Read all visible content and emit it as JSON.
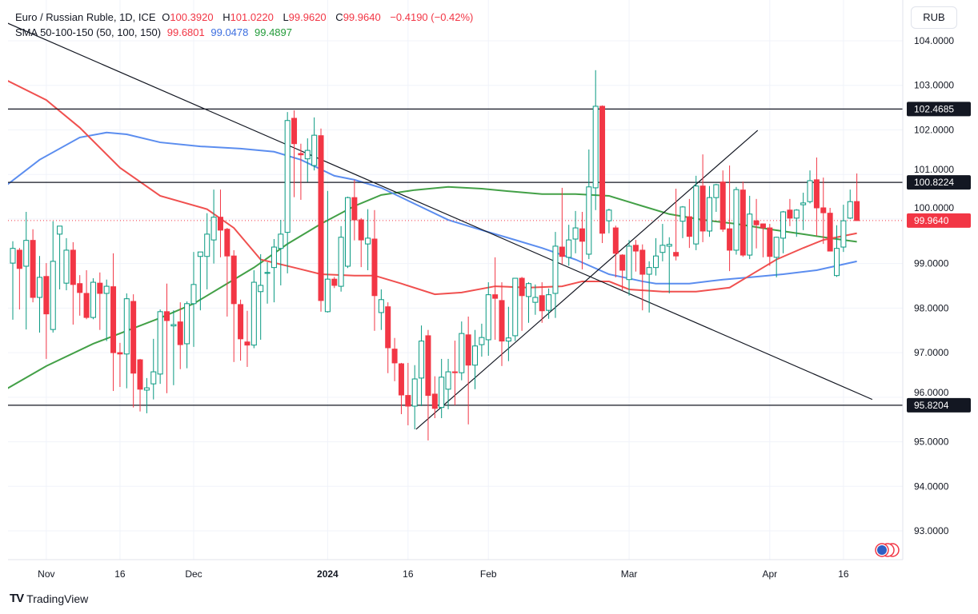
{
  "header": {
    "symbol": "Euro / Russian Ruble, 1D, ICE",
    "o_label": "O",
    "o": "100.3920",
    "h_label": "H",
    "h": "101.0220",
    "l_label": "L",
    "l": "99.9620",
    "c_label": "C",
    "c": "99.9640",
    "change": "−0.4190 (−0.42%)",
    "sma_label": "SMA 50-100-150 (50, 100, 150)",
    "sma50": "99.6801",
    "sma100": "99.0478",
    "sma150": "99.4897"
  },
  "currency": "RUB",
  "brand": "TradingView",
  "colors": {
    "up": "#089981",
    "down": "#F23645",
    "sma50": "#F0504F",
    "sma100": "#5b8def",
    "sma150": "#43a047",
    "hline": "#131722"
  },
  "chart_data": {
    "type": "candlestick",
    "ylim": [
      92.4,
      104.9
    ],
    "y_ticks": [
      "93.0000",
      "94.0000",
      "95.0000",
      "96.0000",
      "97.0000",
      "98.0000",
      "99.0000",
      "100.0000",
      "101.0000",
      "102.0000",
      "103.0000",
      "104.0000"
    ],
    "x_ticks": [
      {
        "label": "Nov",
        "bar": 5
      },
      {
        "label": "16",
        "bar": 16
      },
      {
        "label": "Dec",
        "bar": 27
      },
      {
        "label": "2024",
        "bar": 47,
        "bold": true
      },
      {
        "label": "16",
        "bar": 59
      },
      {
        "label": "Feb",
        "bar": 71
      },
      {
        "label": "Mar",
        "bar": 92
      },
      {
        "label": "Apr",
        "bar": 113
      },
      {
        "label": "16",
        "bar": 124
      }
    ],
    "candles": [
      [
        99.01,
        99.5,
        97.74,
        99.34
      ],
      [
        99.3,
        99.35,
        97.97,
        98.89
      ],
      [
        98.94,
        100.16,
        97.52,
        99.52
      ],
      [
        99.52,
        99.77,
        98.13,
        98.24
      ],
      [
        98.24,
        99.17,
        97.45,
        98.69
      ],
      [
        98.71,
        99.01,
        96.86,
        97.87
      ],
      [
        97.52,
        99.95,
        97.45,
        99.05
      ],
      [
        99.66,
        99.84,
        98.42,
        99.84
      ],
      [
        98.56,
        99.57,
        98.4,
        99.3
      ],
      [
        99.3,
        99.48,
        97.63,
        98.53
      ],
      [
        98.55,
        98.74,
        97.83,
        98.35
      ],
      [
        98.33,
        98.85,
        97.75,
        97.79
      ],
      [
        97.79,
        98.67,
        97.75,
        98.58
      ],
      [
        98.56,
        98.8,
        97.51,
        98.33
      ],
      [
        98.33,
        98.64,
        97.26,
        98.49
      ],
      [
        98.48,
        99.23,
        96.14,
        97.0
      ],
      [
        97.0,
        97.22,
        96.23,
        96.97
      ],
      [
        96.97,
        98.33,
        96.2,
        98.21
      ],
      [
        98.15,
        98.31,
        95.77,
        96.54
      ],
      [
        96.84,
        96.86,
        95.68,
        96.18
      ],
      [
        96.16,
        96.43,
        95.64,
        96.21
      ],
      [
        96.3,
        97.31,
        95.95,
        96.57
      ],
      [
        96.52,
        97.97,
        96.3,
        97.92
      ],
      [
        97.92,
        98.55,
        96.09,
        97.72
      ],
      [
        97.6,
        97.95,
        96.27,
        97.63
      ],
      [
        97.69,
        98.13,
        96.63,
        97.18
      ],
      [
        97.2,
        98.15,
        96.65,
        98.1
      ],
      [
        98.1,
        99.26,
        97.13,
        98.53
      ],
      [
        99.16,
        99.26,
        97.95,
        99.26
      ],
      [
        99.16,
        100.13,
        98.42,
        99.66
      ],
      [
        99.53,
        100.66,
        99.0,
        100.04
      ],
      [
        100.04,
        100.66,
        99.14,
        99.75
      ],
      [
        99.77,
        99.8,
        97.81,
        99.17
      ],
      [
        99.17,
        99.3,
        96.79,
        98.1
      ],
      [
        98.08,
        98.19,
        96.82,
        97.31
      ],
      [
        97.24,
        97.94,
        96.68,
        97.17
      ],
      [
        97.17,
        98.85,
        97.1,
        98.58
      ],
      [
        98.37,
        99.21,
        97.29,
        98.51
      ],
      [
        98.78,
        99.03,
        98.1,
        98.8
      ],
      [
        98.91,
        99.55,
        98.13,
        99.37
      ],
      [
        99.34,
        99.98,
        98.51,
        99.66
      ],
      [
        99.7,
        102.4,
        98.78,
        102.21
      ],
      [
        102.26,
        102.44,
        100.49,
        101.69
      ],
      [
        101.47,
        101.69,
        100.43,
        101.44
      ],
      [
        101.35,
        101.81,
        100.83,
        101.54
      ],
      [
        101.2,
        102.28,
        101.09,
        101.88
      ],
      [
        101.87,
        102.03,
        97.92,
        98.17
      ],
      [
        97.92,
        100.63,
        97.9,
        98.65
      ],
      [
        98.65,
        98.7,
        98.45,
        98.51
      ],
      [
        98.49,
        99.84,
        98.37,
        99.59
      ],
      [
        98.94,
        100.5,
        98.9,
        100.48
      ],
      [
        100.48,
        100.88,
        99.52,
        99.98
      ],
      [
        99.98,
        100.02,
        98.92,
        99.53
      ],
      [
        99.44,
        100.22,
        98.85,
        99.57
      ],
      [
        99.55,
        100.2,
        97.49,
        98.28
      ],
      [
        97.9,
        98.42,
        97.51,
        98.19
      ],
      [
        98.03,
        98.13,
        96.54,
        97.11
      ],
      [
        97.08,
        97.33,
        96.36,
        96.77
      ],
      [
        96.75,
        96.77,
        95.62,
        96.05
      ],
      [
        96.04,
        96.77,
        95.37,
        95.8
      ],
      [
        95.8,
        96.72,
        95.28,
        96.41
      ],
      [
        96.43,
        97.61,
        95.8,
        97.26
      ],
      [
        97.38,
        97.51,
        95.03,
        96.04
      ],
      [
        96.07,
        96.47,
        95.53,
        95.75
      ],
      [
        95.77,
        96.86,
        95.53,
        96.45
      ],
      [
        96.18,
        96.86,
        95.73,
        96.57
      ],
      [
        96.57,
        97.27,
        95.82,
        96.55
      ],
      [
        96.55,
        97.7,
        96.38,
        97.43
      ],
      [
        97.4,
        97.81,
        95.39,
        96.72
      ],
      [
        96.72,
        97.51,
        96.18,
        97.15
      ],
      [
        97.18,
        97.65,
        96.91,
        97.34
      ],
      [
        97.29,
        98.58,
        96.93,
        98.3
      ],
      [
        98.3,
        99.14,
        97.29,
        98.22
      ],
      [
        98.17,
        98.58,
        96.7,
        97.26
      ],
      [
        97.26,
        98.03,
        96.81,
        97.33
      ],
      [
        97.38,
        98.67,
        97.26,
        98.67
      ],
      [
        98.67,
        98.7,
        97.49,
        98.28
      ],
      [
        98.26,
        98.58,
        97.67,
        98.55
      ],
      [
        98.13,
        98.53,
        97.85,
        98.24
      ],
      [
        98.28,
        98.58,
        97.67,
        97.94
      ],
      [
        97.95,
        98.44,
        97.76,
        98.3
      ],
      [
        98.33,
        99.71,
        97.78,
        99.39
      ],
      [
        99.37,
        100.7,
        98.98,
        99.16
      ],
      [
        99.14,
        99.87,
        98.95,
        99.53
      ],
      [
        99.55,
        100.18,
        99.23,
        99.8
      ],
      [
        99.78,
        100.16,
        98.87,
        99.5
      ],
      [
        99.21,
        101.56,
        99.1,
        100.72
      ],
      [
        100.7,
        103.34,
        100.2,
        102.53
      ],
      [
        102.53,
        102.55,
        99.46,
        99.68
      ],
      [
        99.96,
        100.23,
        99.68,
        100.2
      ],
      [
        99.8,
        99.85,
        98.69,
        99.23
      ],
      [
        99.19,
        99.21,
        98.39,
        98.85
      ],
      [
        98.64,
        99.53,
        98.28,
        99.39
      ],
      [
        99.41,
        99.53,
        98.82,
        99.28
      ],
      [
        99.3,
        99.43,
        97.95,
        98.76
      ],
      [
        98.76,
        99.05,
        97.9,
        98.91
      ],
      [
        98.91,
        99.57,
        98.73,
        99.17
      ],
      [
        99.25,
        99.89,
        99.05,
        99.41
      ],
      [
        99.39,
        99.59,
        98.33,
        99.43
      ],
      [
        99.25,
        100.68,
        99.07,
        99.17
      ],
      [
        99.95,
        100.29,
        99.57,
        100.27
      ],
      [
        100.05,
        100.45,
        99.35,
        99.61
      ],
      [
        99.44,
        100.97,
        99.3,
        100.74
      ],
      [
        100.74,
        101.45,
        99.48,
        99.73
      ],
      [
        99.73,
        100.74,
        99.6,
        100.48
      ],
      [
        100.48,
        100.79,
        100.16,
        100.77
      ],
      [
        100.83,
        101.09,
        99.71,
        99.77
      ],
      [
        99.78,
        101.2,
        98.83,
        99.3
      ],
      [
        99.3,
        100.72,
        99.2,
        100.66
      ],
      [
        100.65,
        100.84,
        99.15,
        99.19
      ],
      [
        99.19,
        100.52,
        99.1,
        100.11
      ],
      [
        99.96,
        100.45,
        99.34,
        99.87
      ],
      [
        99.89,
        99.9,
        99.14,
        99.8
      ],
      [
        99.8,
        99.89,
        98.95,
        99.16
      ],
      [
        99.14,
        99.6,
        98.69,
        99.59
      ],
      [
        99.57,
        100.18,
        99.23,
        100.16
      ],
      [
        100.2,
        100.45,
        99.84,
        100.02
      ],
      [
        100.02,
        100.22,
        99.6,
        100.2
      ],
      [
        100.32,
        100.59,
        99.75,
        100.36
      ],
      [
        100.39,
        101.09,
        100.35,
        100.86
      ],
      [
        100.88,
        101.38,
        99.62,
        100.25
      ],
      [
        100.25,
        100.93,
        99.44,
        100.14
      ],
      [
        100.13,
        100.25,
        99.28,
        99.28
      ],
      [
        98.73,
        99.86,
        98.7,
        99.34
      ],
      [
        99.37,
        100.32,
        99.26,
        99.96
      ],
      [
        100.02,
        100.66,
        100.0,
        100.39
      ],
      [
        100.392,
        101.022,
        99.962,
        99.964
      ]
    ],
    "sma50": [
      [
        -1,
        103.12
      ],
      [
        5,
        102.67
      ],
      [
        10,
        102.05
      ],
      [
        16,
        101.15
      ],
      [
        22,
        100.52
      ],
      [
        29,
        100.22
      ],
      [
        33,
        99.8
      ],
      [
        37,
        99.09
      ],
      [
        42,
        98.91
      ],
      [
        46,
        98.76
      ],
      [
        51,
        98.73
      ],
      [
        54,
        98.73
      ],
      [
        58,
        98.55
      ],
      [
        63,
        98.31
      ],
      [
        67,
        98.35
      ],
      [
        72,
        98.49
      ],
      [
        77,
        98.46
      ],
      [
        82,
        98.49
      ],
      [
        85,
        98.6
      ],
      [
        89,
        98.6
      ],
      [
        92,
        98.42
      ],
      [
        97,
        98.37
      ],
      [
        102,
        98.37
      ],
      [
        107,
        98.46
      ],
      [
        110,
        98.73
      ],
      [
        114,
        99.09
      ],
      [
        118,
        99.35
      ],
      [
        121,
        99.53
      ],
      [
        126,
        99.68
      ]
    ],
    "sma100": [
      [
        -1,
        100.75
      ],
      [
        4,
        101.33
      ],
      [
        10,
        101.83
      ],
      [
        14,
        101.94
      ],
      [
        17,
        101.9
      ],
      [
        22,
        101.72
      ],
      [
        28,
        101.63
      ],
      [
        34,
        101.58
      ],
      [
        39,
        101.51
      ],
      [
        43,
        101.33
      ],
      [
        48,
        100.97
      ],
      [
        51,
        100.88
      ],
      [
        55,
        100.7
      ],
      [
        60,
        100.34
      ],
      [
        65,
        99.98
      ],
      [
        70,
        99.75
      ],
      [
        75,
        99.53
      ],
      [
        79,
        99.35
      ],
      [
        84,
        99.09
      ],
      [
        89,
        98.76
      ],
      [
        94,
        98.6
      ],
      [
        96,
        98.55
      ],
      [
        101,
        98.55
      ],
      [
        106,
        98.64
      ],
      [
        110,
        98.69
      ],
      [
        115,
        98.76
      ],
      [
        120,
        98.85
      ],
      [
        126,
        99.05
      ]
    ],
    "sma150": [
      [
        -1,
        96.18
      ],
      [
        5,
        96.7
      ],
      [
        12,
        97.2
      ],
      [
        17,
        97.49
      ],
      [
        22,
        97.78
      ],
      [
        27,
        98.1
      ],
      [
        31,
        98.46
      ],
      [
        36,
        98.91
      ],
      [
        41,
        99.44
      ],
      [
        46,
        99.89
      ],
      [
        51,
        100.29
      ],
      [
        55,
        100.54
      ],
      [
        60,
        100.65
      ],
      [
        65,
        100.72
      ],
      [
        70,
        100.68
      ],
      [
        75,
        100.61
      ],
      [
        79,
        100.56
      ],
      [
        84,
        100.56
      ],
      [
        89,
        100.52
      ],
      [
        94,
        100.29
      ],
      [
        98,
        100.11
      ],
      [
        103,
        99.98
      ],
      [
        108,
        99.89
      ],
      [
        113,
        99.77
      ],
      [
        118,
        99.66
      ],
      [
        122,
        99.57
      ],
      [
        126,
        99.49
      ]
    ],
    "hlines": [
      {
        "value": 102.4685,
        "label": "102.4685"
      },
      {
        "value": 100.8224,
        "label": "100.8224"
      },
      {
        "value": 95.8204,
        "label": "95.8204"
      }
    ],
    "trendlines": [
      {
        "from": [
          -8.8,
          104.92
        ],
        "to": [
          128.3,
          95.95
        ]
      },
      {
        "from": [
          60.2,
          95.28
        ],
        "to": [
          111.2,
          101.99
        ]
      }
    ],
    "last_price": {
      "value": 99.964,
      "label": "99.9640"
    }
  }
}
